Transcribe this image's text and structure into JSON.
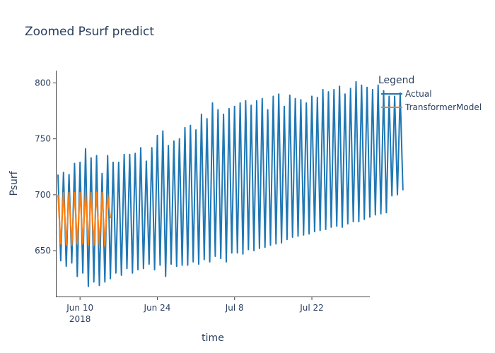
{
  "chart_data": {
    "type": "line",
    "title": "Zoomed Psurf predict",
    "xlabel": "time",
    "ylabel": "Psurf",
    "xlim": [
      "2018-06-05T18:00",
      "2018-08-01T12:00"
    ],
    "ylim": [
      609,
      811
    ],
    "grid": false,
    "legend_position": "right",
    "legend_title": "Legend",
    "x_ticks": [
      {
        "date": "2018-06-10",
        "label": "Jun 10",
        "sublabel": "2018"
      },
      {
        "date": "2018-06-24",
        "label": "Jun 24",
        "sublabel": ""
      },
      {
        "date": "2018-07-08",
        "label": "Jul 8",
        "sublabel": ""
      },
      {
        "date": "2018-07-22",
        "label": "Jul 22",
        "sublabel": ""
      }
    ],
    "y_ticks": [
      650,
      700,
      750,
      800
    ],
    "series": [
      {
        "name": "Actual",
        "color": "#1f77b4",
        "x_start": "2018-06-06",
        "x_step_days": 0.5,
        "values": [
          718,
          641,
          720,
          636,
          718,
          639,
          728,
          627,
          729,
          630,
          741,
          618,
          733,
          622,
          735,
          619,
          719,
          622,
          735,
          625,
          729,
          630,
          729,
          628,
          736,
          634,
          736,
          630,
          737,
          633,
          742,
          634,
          730,
          638,
          742,
          633,
          753,
          637,
          757,
          627,
          744,
          638,
          748,
          636,
          750,
          637,
          760,
          637,
          762,
          640,
          758,
          638,
          772,
          642,
          768,
          640,
          782,
          645,
          776,
          643,
          772,
          640,
          777,
          648,
          779,
          648,
          782,
          647,
          784,
          651,
          780,
          650,
          784,
          652,
          786,
          653,
          776,
          655,
          788,
          656,
          790,
          657,
          779,
          660,
          789,
          662,
          786,
          663,
          785,
          664,
          782,
          665,
          788,
          667,
          787,
          668,
          794,
          669,
          792,
          671,
          794,
          672,
          797,
          671,
          790,
          674,
          795,
          676,
          801,
          676,
          798,
          678,
          796,
          680,
          794,
          682,
          798,
          683,
          793,
          684,
          788,
          699,
          788,
          700,
          791,
          704
        ]
      },
      {
        "name": "TransformerModel",
        "color": "#ff7f0e",
        "x_start": "2018-06-06",
        "x_step_days": 0.5,
        "values": [
          700,
          656,
          702,
          655,
          702,
          655,
          702,
          656,
          702,
          656,
          702,
          655,
          702,
          655,
          702,
          655,
          702,
          654,
          700,
          679
        ]
      }
    ]
  }
}
